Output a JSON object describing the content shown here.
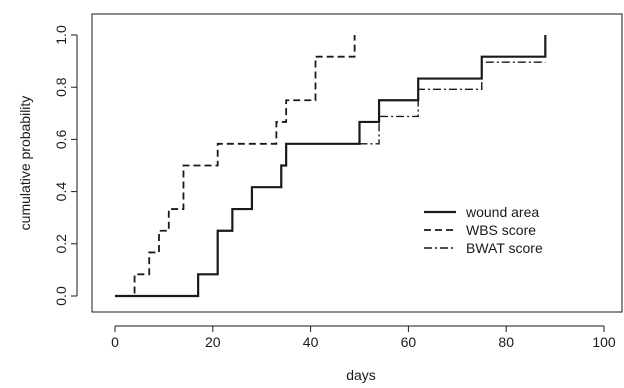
{
  "chart_data": {
    "type": "line",
    "step": true,
    "xlabel": "days",
    "ylabel": "cumulative probability",
    "xlim": [
      0,
      100
    ],
    "ylim": [
      0,
      1
    ],
    "xticks": [
      0,
      20,
      40,
      60,
      80,
      100
    ],
    "yticks": [
      0.0,
      0.2,
      0.4,
      0.6,
      0.8,
      1.0
    ],
    "ytick_labels": [
      "0.0",
      "0.2",
      "0.4",
      "0.6",
      "0.8",
      "1.0"
    ],
    "grid": false,
    "legend_position": "right",
    "series": [
      {
        "name": "wound area",
        "line_style": "solid",
        "x": [
          0,
          17,
          21,
          24,
          28,
          34,
          35,
          50,
          54,
          62,
          75,
          88
        ],
        "y": [
          0,
          0.083,
          0.25,
          0.333,
          0.417,
          0.5,
          0.583,
          0.667,
          0.75,
          0.833,
          0.917,
          1.0
        ]
      },
      {
        "name": "WBS score",
        "line_style": "dashed",
        "x": [
          0,
          4,
          5,
          7,
          9,
          11,
          14,
          21,
          33,
          34,
          35,
          39,
          41,
          48,
          49
        ],
        "y": [
          0,
          0.083,
          0.083,
          0.167,
          0.25,
          0.333,
          0.5,
          0.583,
          0.667,
          0.667,
          0.75,
          0.75,
          0.917,
          0.917,
          1.0
        ]
      },
      {
        "name": "BWAT score",
        "line_style": "dashdot",
        "x": [
          50,
          54,
          62,
          75,
          88
        ],
        "y": [
          0.583,
          0.688,
          0.792,
          0.896,
          0.896
        ]
      }
    ]
  }
}
